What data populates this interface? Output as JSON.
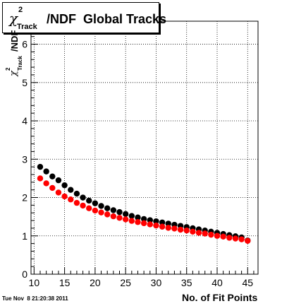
{
  "title": {
    "chi": "χ",
    "sup": "2",
    "sub": "Track",
    "rest": "/NDF  Global Tracks"
  },
  "axis": {
    "ylabel": "/NDF",
    "ylabel_chi": "χ",
    "ylabel_sup": "2",
    "ylabel_sub": "Track",
    "xlabel": "No. of Fit Points"
  },
  "datestamp": "Tue Nov  8 21:20:38 2011",
  "colors": {
    "series1": "#000000",
    "series2": "#ff0000",
    "grid": "#000000"
  },
  "chart_data": {
    "type": "scatter",
    "title": "χ²Track/NDF  Global Tracks",
    "xlabel": "No. of Fit Points",
    "ylabel": "χ²Track/NDF",
    "xlim": [
      9.5,
      46.7
    ],
    "ylim": [
      0,
      6.6
    ],
    "xticks": [
      10,
      15,
      20,
      25,
      30,
      35,
      40,
      45
    ],
    "yticks": [
      0,
      1,
      2,
      3,
      4,
      5,
      6
    ],
    "grid": true,
    "x": [
      11,
      12,
      13,
      14,
      15,
      16,
      17,
      18,
      19,
      20,
      21,
      22,
      23,
      24,
      25,
      26,
      27,
      28,
      29,
      30,
      31,
      32,
      33,
      34,
      35,
      36,
      37,
      38,
      39,
      40,
      41,
      42,
      43,
      44,
      45
    ],
    "series": [
      {
        "color": "#000000",
        "values": [
          2.8,
          2.68,
          2.55,
          2.45,
          2.32,
          2.2,
          2.1,
          2.0,
          1.92,
          1.85,
          1.78,
          1.72,
          1.67,
          1.62,
          1.57,
          1.52,
          1.48,
          1.44,
          1.41,
          1.38,
          1.35,
          1.32,
          1.29,
          1.26,
          1.23,
          1.2,
          1.17,
          1.14,
          1.11,
          1.08,
          1.05,
          1.02,
          0.99,
          0.96,
          0.88
        ]
      },
      {
        "color": "#ff0000",
        "values": [
          2.5,
          2.37,
          2.25,
          2.13,
          2.03,
          1.95,
          1.86,
          1.79,
          1.72,
          1.66,
          1.61,
          1.56,
          1.51,
          1.47,
          1.43,
          1.39,
          1.36,
          1.33,
          1.3,
          1.27,
          1.24,
          1.21,
          1.19,
          1.16,
          1.14,
          1.11,
          1.08,
          1.06,
          1.03,
          1.0,
          0.98,
          0.95,
          0.93,
          0.91,
          0.87
        ]
      }
    ]
  }
}
